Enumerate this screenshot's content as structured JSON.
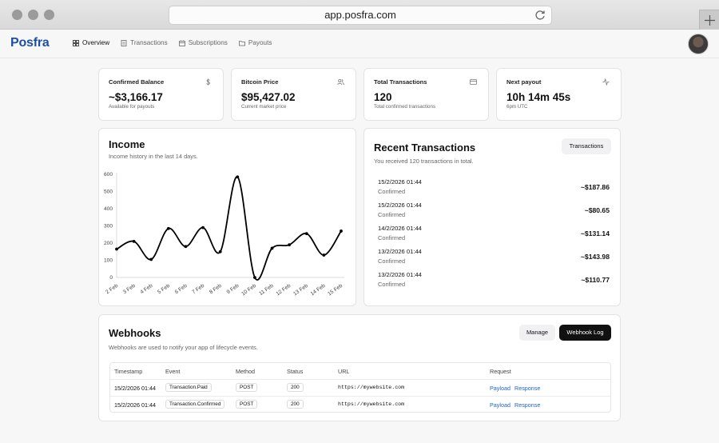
{
  "browser": {
    "url": "app.posfra.com"
  },
  "nav": {
    "logo": "Posfra",
    "links": [
      {
        "label": "Overview",
        "icon": "grid-icon"
      },
      {
        "label": "Transactions",
        "icon": "document-icon"
      },
      {
        "label": "Subscriptions",
        "icon": "calendar-icon"
      },
      {
        "label": "Payouts",
        "icon": "folder-icon"
      }
    ],
    "avatar": "user-avatar"
  },
  "stats": [
    {
      "title": "Confirmed Balance",
      "value": "~$3,166.17",
      "sub": "Available for payouts",
      "icon": "dollar-icon"
    },
    {
      "title": "Bitcoin Price",
      "value": "$95,427.02",
      "sub": "Current market price",
      "icon": "users-icon"
    },
    {
      "title": "Total Transactions",
      "value": "120",
      "sub": "Total confirmed transactions",
      "icon": "card-icon"
    },
    {
      "title": "Next payout",
      "value": "10h 14m 45s",
      "sub": "6pm UTC",
      "icon": "activity-icon"
    }
  ],
  "income": {
    "title": "Income",
    "subtitle": "Income history in the last 14 days."
  },
  "chart_data": {
    "type": "line",
    "title": "Income",
    "x": [
      "2 Feb",
      "3 Feb",
      "4 Feb",
      "5 Feb",
      "6 Feb",
      "7 Feb",
      "8 Feb",
      "9 Feb",
      "10 Feb",
      "11 Feb",
      "12 Feb",
      "13 Feb",
      "14 Feb",
      "15 Feb"
    ],
    "series": [
      {
        "values": [
          165,
          210,
          105,
          285,
          180,
          290,
          150,
          585,
          0,
          170,
          190,
          255,
          130,
          270
        ]
      }
    ],
    "ylim": [
      0,
      600
    ],
    "yticks": [
      0,
      100,
      200,
      300,
      400,
      500,
      600
    ],
    "grid": false,
    "line_color": "#000000"
  },
  "recent": {
    "title": "Recent Transactions",
    "subtitle": "You received 120 transactions in total.",
    "button": "Transactions",
    "items": [
      {
        "date": "15/2/2026 01:44",
        "status": "Confirmed",
        "amount": "~$187.86"
      },
      {
        "date": "15/2/2026 01:44",
        "status": "Confirmed",
        "amount": "~$80.65"
      },
      {
        "date": "14/2/2026 01:44",
        "status": "Confirmed",
        "amount": "~$131.14"
      },
      {
        "date": "13/2/2026 01:44",
        "status": "Confirmed",
        "amount": "~$143.98"
      },
      {
        "date": "13/2/2026 01:44",
        "status": "Confirmed",
        "amount": "~$110.77"
      }
    ]
  },
  "webhooks": {
    "title": "Webhooks",
    "subtitle": "Webhooks are used to notify your app of lifecycle events.",
    "manage": "Manage",
    "log": "Webhook Log",
    "columns": [
      "Timestamp",
      "Event",
      "Method",
      "Status",
      "URL",
      "Request"
    ],
    "rows": [
      {
        "timestamp": "15/2/2026 01:44",
        "event": "Transaction.Paid",
        "method": "POST",
        "status": "200",
        "url": "https://mywebsite.com",
        "payload": "Payload",
        "response": "Response"
      },
      {
        "timestamp": "15/2/2026 01:44",
        "event": "Transaction.Confirmed",
        "method": "POST",
        "status": "200",
        "url": "https://mywebsite.com",
        "payload": "Payload",
        "response": "Response"
      }
    ]
  },
  "colors": {
    "brand": "#1f4fa3",
    "link": "#1e63c9",
    "dark_button": "#111111"
  }
}
